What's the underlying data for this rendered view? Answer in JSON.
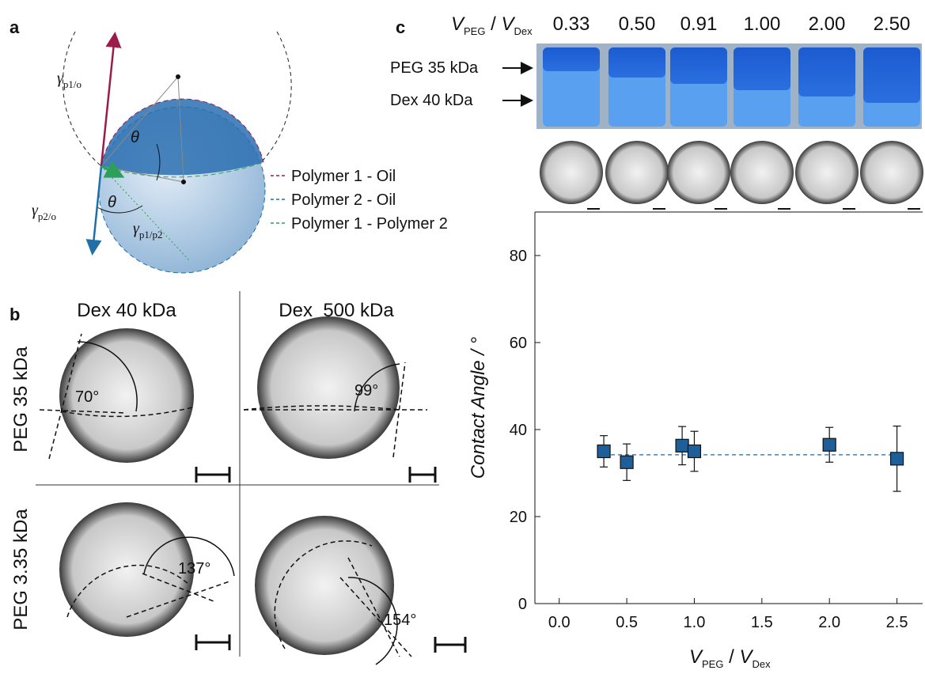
{
  "panels": {
    "a": "a",
    "b": "b",
    "c": "c"
  },
  "panel_a": {
    "gamma": "γ",
    "gamma_subs": [
      "p1/o",
      "p2/o",
      "p1/p2"
    ],
    "gamma_colors": [
      "#9b1b4b",
      "#1f6fa8",
      "#2ca05a"
    ],
    "theta": "θ",
    "legend": [
      "Polymer 1 - Oil",
      "Polymer 2 - Oil",
      "Polymer 1 - Polymer 2"
    ]
  },
  "panel_b": {
    "columns": [
      "Dex 40 kDa",
      "Dex  500 kDa"
    ],
    "rows": [
      "PEG 35 kDa",
      "PEG 3.35 kDa"
    ],
    "angles": [
      "70°",
      "99°",
      "137°",
      "154°"
    ]
  },
  "panel_c": {
    "ratio_label": {
      "v1": "V",
      "sub1": "PEG",
      "sep": " / ",
      "v2": "V",
      "sub2": "Dex"
    },
    "ratios": [
      "0.33",
      "0.50",
      "0.91",
      "1.00",
      "2.00",
      "2.50"
    ],
    "phases": [
      "PEG 35 kDa",
      "Dex 40 kDa"
    ]
  },
  "chart_data": {
    "type": "scatter",
    "x": [
      0.33,
      0.5,
      0.91,
      1.0,
      2.0,
      2.5
    ],
    "series": [
      {
        "color": "#1f5f99",
        "values": [
          35,
          32.5,
          36.3,
          35,
          36.5,
          33.3
        ],
        "errors": [
          3.6,
          4.2,
          4.4,
          4.6,
          4,
          7.5
        ]
      }
    ],
    "fit": 34.2,
    "fit_color": "#4a7fae",
    "xlim": [
      -0.18,
      2.69
    ],
    "ylim": [
      0,
      90
    ],
    "xticks": [
      {
        "value": 0,
        "label": "0.0"
      },
      0.5,
      {
        "value": 1,
        "label": "1.0"
      },
      1.5,
      {
        "value": 2,
        "label": "2.0"
      },
      2.5
    ],
    "yticks": [
      0,
      20,
      40,
      60,
      80
    ],
    "xlabel": {
      "v1": "V",
      "sub1": "PEG",
      "sep": " / ",
      "v2": "V",
      "sub2": "Dex"
    },
    "ylabel": "Contact Angle / °"
  }
}
